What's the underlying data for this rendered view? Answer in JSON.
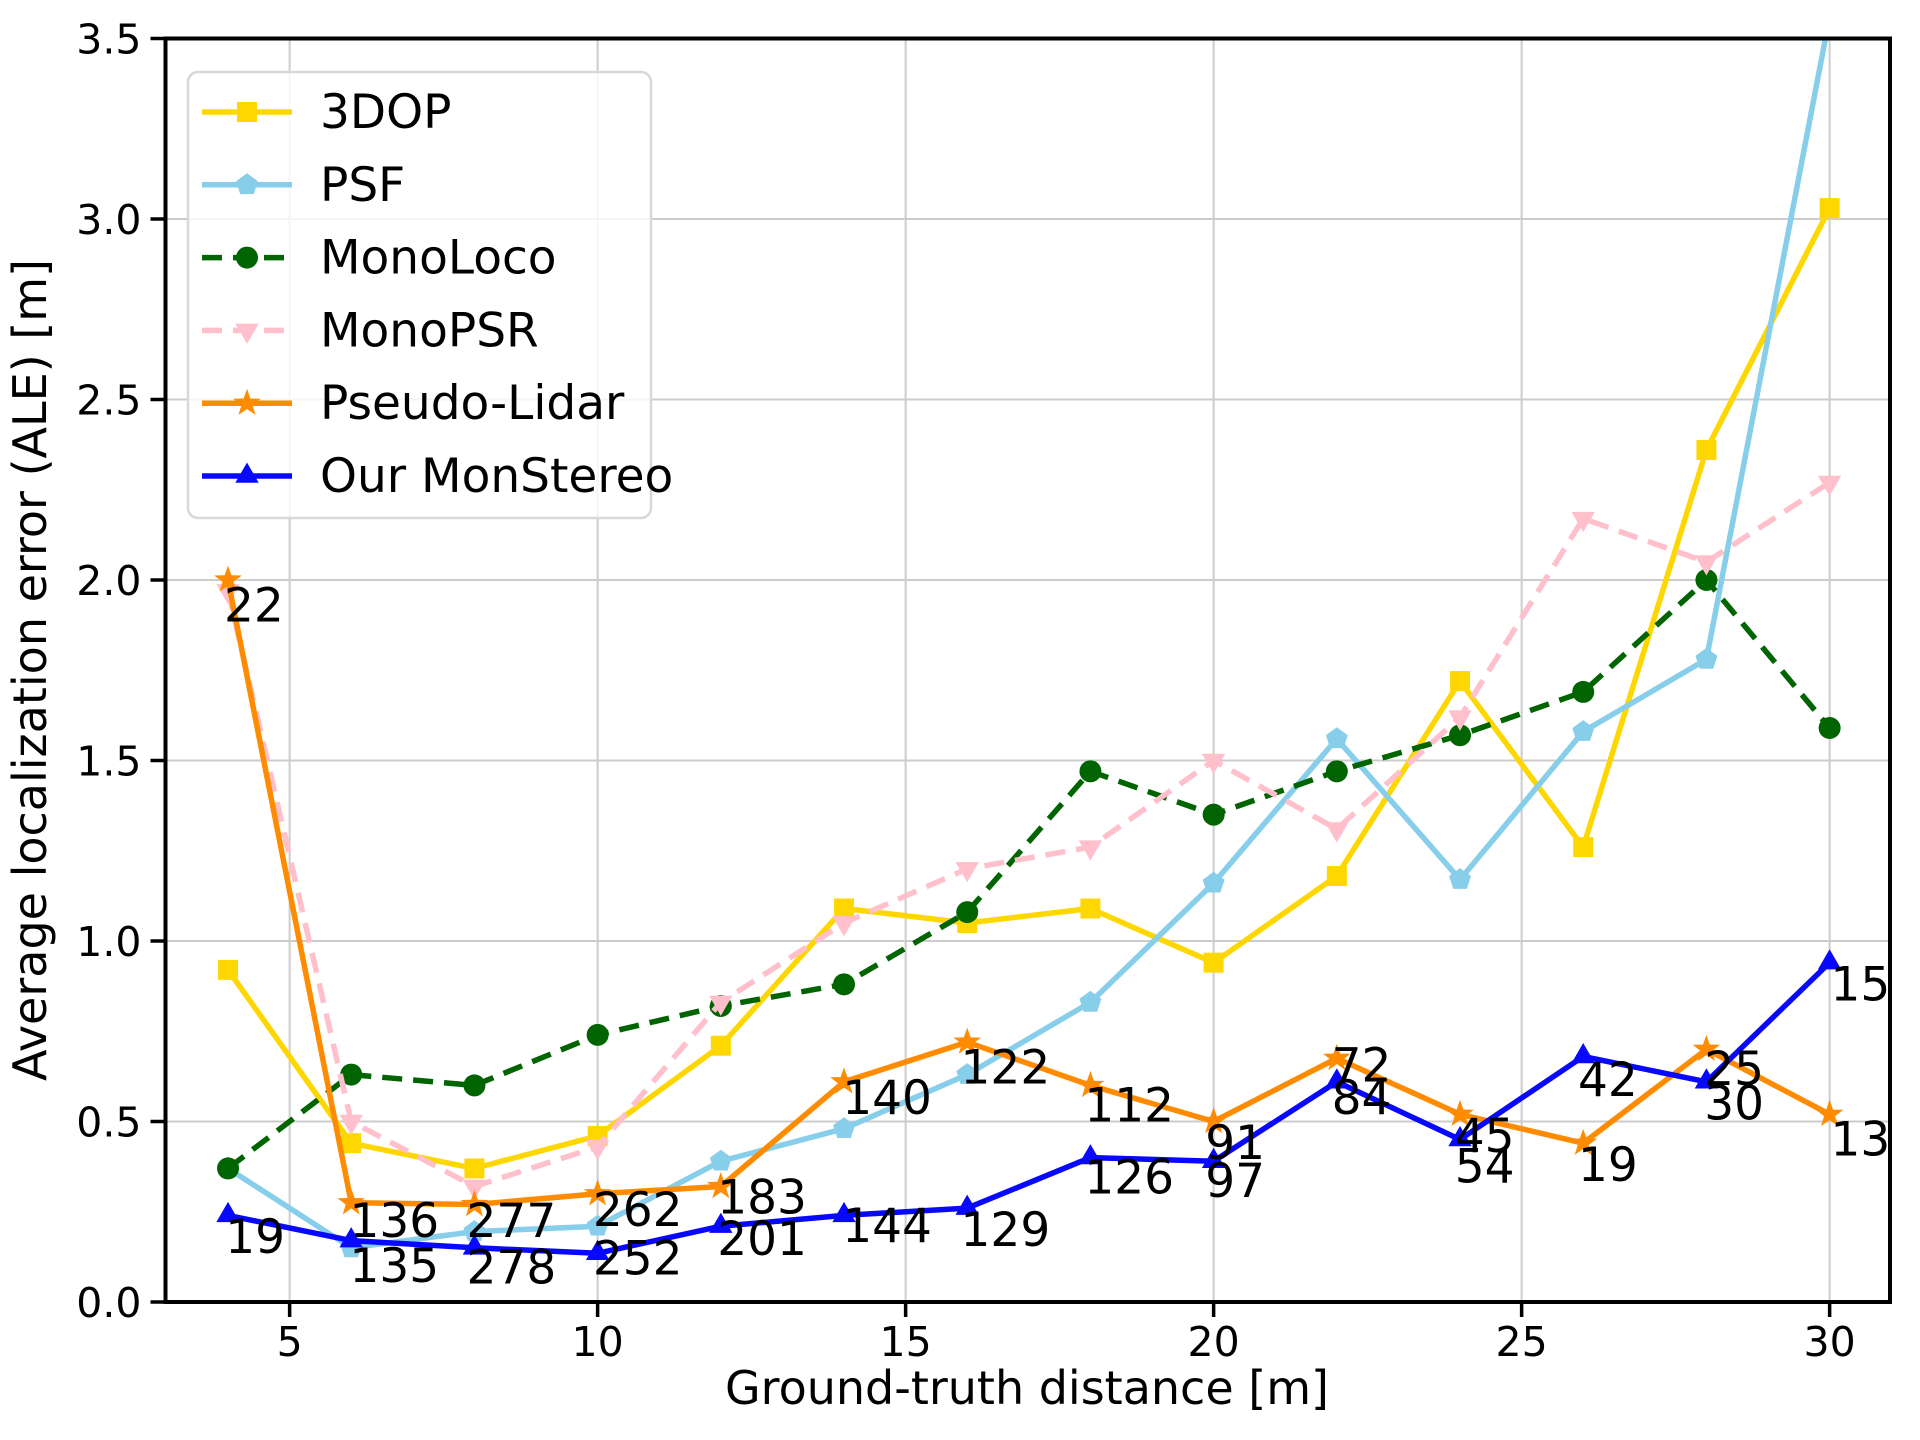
{
  "chart_data": {
    "type": "line",
    "title": "",
    "xlabel": "Ground-truth distance [m]",
    "ylabel": "Average localization error (ALE) [m]",
    "xlim": [
      2.985,
      30.98
    ],
    "ylim": [
      0.0,
      3.5
    ],
    "xticks": [
      5,
      10,
      15,
      20,
      25,
      30
    ],
    "yticks": [
      0.0,
      0.5,
      1.0,
      1.5,
      2.0,
      2.5,
      3.0,
      3.5
    ],
    "grid": true,
    "grid_color": "#cccccc",
    "legend_position": "upper left",
    "x": [
      4,
      6,
      8,
      10,
      12,
      14,
      16,
      18,
      20,
      22,
      24,
      26,
      28,
      30
    ],
    "series": [
      {
        "name": "3DOP",
        "color": "#FFD700",
        "marker": "square",
        "line_style": "solid",
        "values": [
          0.92,
          0.44,
          0.37,
          0.46,
          0.71,
          1.09,
          1.05,
          1.09,
          0.94,
          1.18,
          1.72,
          1.26,
          2.36,
          3.03
        ]
      },
      {
        "name": "PSF",
        "color": "#87CEEB",
        "marker": "pentagon",
        "line_style": "solid",
        "values": [
          0.37,
          0.15,
          0.195,
          0.21,
          0.39,
          0.48,
          0.63,
          0.83,
          1.16,
          1.56,
          1.17,
          1.58,
          1.78,
          3.56
        ]
      },
      {
        "name": "MonoLoco",
        "color": "#006400",
        "marker": "circle",
        "line_style": "dashed",
        "values": [
          0.37,
          0.63,
          0.6,
          0.74,
          0.82,
          0.88,
          1.08,
          1.47,
          1.35,
          1.47,
          1.57,
          1.69,
          2.0,
          1.59
        ]
      },
      {
        "name": "MonoPSR",
        "color": "#FFC0CB",
        "marker": "triangle-down",
        "line_style": "dashed",
        "values": [
          1.97,
          0.5,
          0.32,
          0.43,
          0.83,
          1.05,
          1.2,
          1.26,
          1.5,
          1.31,
          1.62,
          2.17,
          2.05,
          2.27
        ]
      },
      {
        "name": "Pseudo-Lidar",
        "color": "#FF8C00",
        "marker": "star",
        "line_style": "solid",
        "values": [
          2.0,
          0.275,
          0.27,
          0.3,
          0.32,
          0.61,
          0.72,
          0.6,
          0.5,
          0.675,
          0.52,
          0.44,
          0.7,
          0.52
        ]
      },
      {
        "name": "Our MonStereo",
        "color": "#0808FF",
        "marker": "triangle-up",
        "line_style": "solid",
        "values": [
          0.24,
          0.17,
          0.15,
          0.135,
          0.21,
          0.24,
          0.26,
          0.4,
          0.39,
          0.61,
          0.45,
          0.68,
          0.61,
          0.94
        ]
      }
    ],
    "annotations": [
      {
        "x": 4.42,
        "y": 1.93,
        "text": "22"
      },
      {
        "x": 4.44,
        "y": 0.18,
        "text": "19"
      },
      {
        "x": 6.7,
        "y": 0.225,
        "text": "136"
      },
      {
        "x": 6.7,
        "y": 0.1,
        "text": "135"
      },
      {
        "x": 8.6,
        "y": 0.225,
        "text": "277"
      },
      {
        "x": 8.6,
        "y": 0.095,
        "text": "278"
      },
      {
        "x": 10.65,
        "y": 0.255,
        "text": "262"
      },
      {
        "x": 10.65,
        "y": 0.12,
        "text": "252"
      },
      {
        "x": 12.67,
        "y": 0.29,
        "text": "183"
      },
      {
        "x": 12.67,
        "y": 0.175,
        "text": "201"
      },
      {
        "x": 14.7,
        "y": 0.565,
        "text": "140"
      },
      {
        "x": 14.7,
        "y": 0.21,
        "text": "144"
      },
      {
        "x": 16.62,
        "y": 0.65,
        "text": "122"
      },
      {
        "x": 16.62,
        "y": 0.2,
        "text": "129"
      },
      {
        "x": 18.63,
        "y": 0.545,
        "text": "112"
      },
      {
        "x": 18.63,
        "y": 0.345,
        "text": "126"
      },
      {
        "x": 20.35,
        "y": 0.44,
        "text": "91"
      },
      {
        "x": 20.35,
        "y": 0.335,
        "text": "97"
      },
      {
        "x": 22.4,
        "y": 0.655,
        "text": "72"
      },
      {
        "x": 22.4,
        "y": 0.565,
        "text": "84"
      },
      {
        "x": 24.4,
        "y": 0.46,
        "text": "45"
      },
      {
        "x": 24.4,
        "y": 0.375,
        "text": "54"
      },
      {
        "x": 26.4,
        "y": 0.615,
        "text": "42"
      },
      {
        "x": 26.4,
        "y": 0.38,
        "text": "19"
      },
      {
        "x": 28.45,
        "y": 0.645,
        "text": "25"
      },
      {
        "x": 28.45,
        "y": 0.55,
        "text": "30"
      },
      {
        "x": 30.5,
        "y": 0.88,
        "text": "15"
      },
      {
        "x": 30.5,
        "y": 0.45,
        "text": "13"
      }
    ]
  }
}
